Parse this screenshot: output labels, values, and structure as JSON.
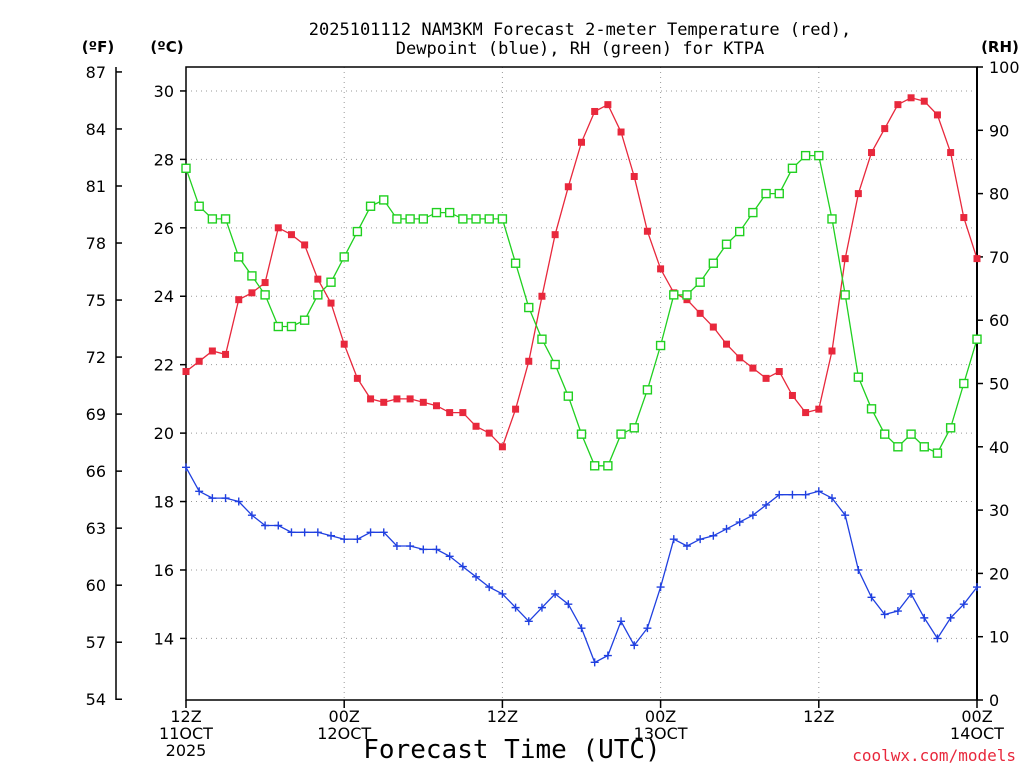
{
  "chart_data": {
    "type": "line",
    "title": [
      "2025101112 NAM3KM Forecast 2-meter Temperature (red),",
      "Dewpoint (blue), RH (green) for KTPA"
    ],
    "xlabel": "Forecast Time (UTC)",
    "credit": "coolwx.com/models",
    "units": {
      "f": "(ºF)",
      "c": "(ºC)",
      "rh": "(RH)"
    },
    "x_range": [
      0,
      60
    ],
    "x_ticks": [
      {
        "x": 0,
        "lines": [
          "12Z",
          "11OCT",
          "2025"
        ]
      },
      {
        "x": 12,
        "lines": [
          "00Z",
          "12OCT"
        ]
      },
      {
        "x": 24,
        "lines": [
          "12Z"
        ]
      },
      {
        "x": 36,
        "lines": [
          "00Z",
          "13OCT"
        ]
      },
      {
        "x": 48,
        "lines": [
          "12Z"
        ]
      },
      {
        "x": 60,
        "lines": [
          "00Z",
          "14OCT"
        ]
      }
    ],
    "axes": {
      "celsius": {
        "range": [
          12.2,
          30.7
        ],
        "ticks": [
          "14",
          "16",
          "18",
          "20",
          "22",
          "24",
          "26",
          "28",
          "30"
        ]
      },
      "fahrenheit": {
        "ticks": [
          "54",
          "57",
          "60",
          "63",
          "66",
          "69",
          "72",
          "75",
          "78",
          "81",
          "84",
          "87"
        ]
      },
      "rh": {
        "range": [
          0,
          100
        ],
        "ticks": [
          "0",
          "10",
          "20",
          "30",
          "40",
          "50",
          "60",
          "70",
          "80",
          "90",
          "100"
        ]
      }
    },
    "series": [
      {
        "name": "Temperature",
        "unit": "C",
        "color": "#e8283c",
        "marker": "filled-square",
        "values": [
          21.8,
          22.1,
          22.4,
          22.3,
          23.9,
          24.1,
          24.4,
          26.0,
          25.8,
          25.5,
          24.5,
          23.8,
          22.6,
          21.6,
          21.0,
          20.9,
          21.0,
          21.0,
          20.9,
          20.8,
          20.6,
          20.6,
          20.2,
          20.0,
          19.6,
          20.7,
          22.1,
          24.0,
          25.8,
          27.2,
          28.5,
          29.4,
          29.6,
          28.8,
          27.5,
          25.9,
          24.8,
          24.1,
          23.9,
          23.5,
          23.1,
          22.6,
          22.2,
          21.9,
          21.6,
          21.8,
          21.1,
          20.6,
          20.7,
          22.4,
          25.1,
          27.0,
          28.2,
          28.9,
          29.6,
          29.8,
          29.7,
          29.3,
          28.2,
          26.3,
          25.1
        ]
      },
      {
        "name": "Dewpoint",
        "unit": "C",
        "color": "#2040e0",
        "marker": "plus",
        "values": [
          19.0,
          18.3,
          18.1,
          18.1,
          18.0,
          17.6,
          17.3,
          17.3,
          17.1,
          17.1,
          17.1,
          17.0,
          16.9,
          16.9,
          17.1,
          17.1,
          16.7,
          16.7,
          16.6,
          16.6,
          16.4,
          16.1,
          15.8,
          15.5,
          15.3,
          14.9,
          14.5,
          14.9,
          15.3,
          15.0,
          14.3,
          13.3,
          13.5,
          14.5,
          13.8,
          14.3,
          15.5,
          16.9,
          16.7,
          16.9,
          17.0,
          17.2,
          17.4,
          17.6,
          17.9,
          18.2,
          18.2,
          18.2,
          18.3,
          18.1,
          17.6,
          16.0,
          15.2,
          14.7,
          14.8,
          15.3,
          14.6,
          14.0,
          14.6,
          15.0,
          15.5
        ]
      },
      {
        "name": "RH",
        "unit": "%",
        "color": "#20d020",
        "marker": "open-square",
        "values": [
          84,
          78,
          76,
          76,
          70,
          67,
          64,
          59,
          59,
          60,
          64,
          66,
          70,
          74,
          78,
          79,
          76,
          76,
          76,
          77,
          77,
          76,
          76,
          76,
          76,
          69,
          62,
          57,
          53,
          48,
          42,
          37,
          37,
          42,
          43,
          49,
          56,
          64,
          64,
          66,
          69,
          72,
          74,
          77,
          80,
          80,
          84,
          86,
          86,
          76,
          64,
          51,
          46,
          42,
          40,
          42,
          40,
          39,
          43,
          50,
          57
        ]
      }
    ]
  }
}
